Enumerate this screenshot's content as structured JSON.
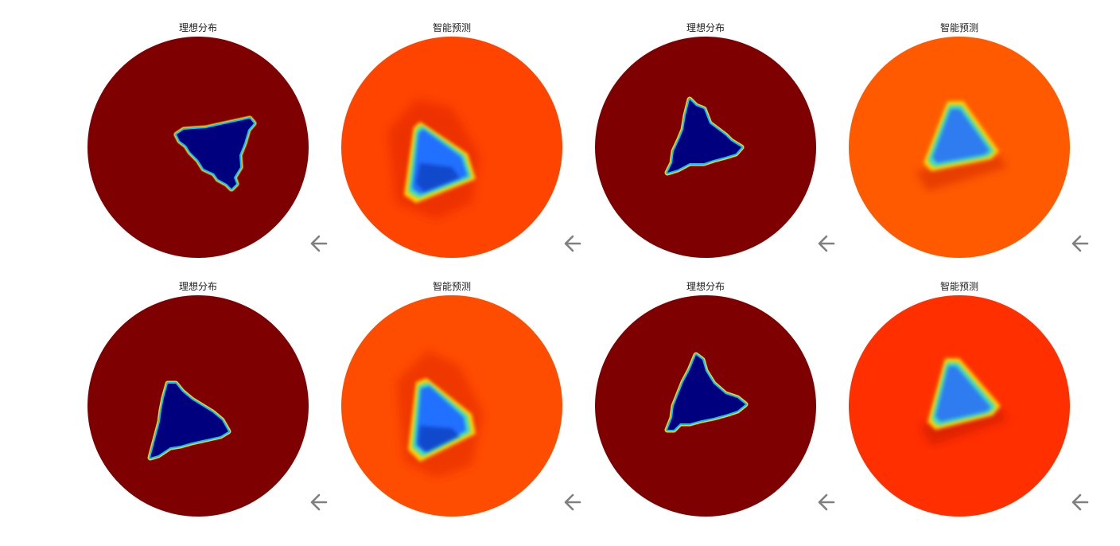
{
  "labels": {
    "ideal": "理想分布",
    "predicted": "智能预测"
  },
  "icons": {
    "back": "arrow-left-icon"
  },
  "colors": {
    "ideal_background": "#7f0000",
    "inclusion": "#00007f",
    "pred_background_1": "#ff4400",
    "pred_background_2": "#ff5a00",
    "pred_background_3": "#ff4d00",
    "pred_background_4": "#ff2f00",
    "arrow": "#808080"
  },
  "panels": [
    {
      "type": "ideal",
      "title": "理想分布"
    },
    {
      "type": "predicted",
      "title": "智能预测"
    },
    {
      "type": "ideal",
      "title": "理想分布"
    },
    {
      "type": "predicted",
      "title": "智能预测"
    },
    {
      "type": "ideal",
      "title": "理想分布"
    },
    {
      "type": "predicted",
      "title": "智能预测"
    },
    {
      "type": "ideal",
      "title": "理想分布"
    },
    {
      "type": "predicted",
      "title": "智能预测"
    }
  ]
}
